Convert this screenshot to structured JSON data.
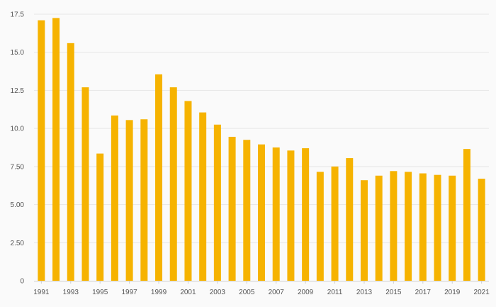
{
  "chart_data": {
    "type": "bar",
    "title": "",
    "xlabel": "",
    "ylabel": "",
    "categories": [
      "1991",
      "1992",
      "1993",
      "1994",
      "1995",
      "1996",
      "1997",
      "1998",
      "1999",
      "2000",
      "2001",
      "2002",
      "2003",
      "2004",
      "2005",
      "2006",
      "2007",
      "2008",
      "2009",
      "2010",
      "2011",
      "2012",
      "2013",
      "2014",
      "2015",
      "2016",
      "2017",
      "2018",
      "2019",
      "2020",
      "2021"
    ],
    "values": [
      17.1,
      17.25,
      15.6,
      12.7,
      8.35,
      10.85,
      10.55,
      10.6,
      13.55,
      12.7,
      11.8,
      11.05,
      10.25,
      9.45,
      9.25,
      8.95,
      8.75,
      8.55,
      8.7,
      7.15,
      7.5,
      8.05,
      6.6,
      6.9,
      7.2,
      7.15,
      7.05,
      6.95,
      6.9,
      8.65,
      6.7
    ],
    "x_tick_labels": [
      "1991",
      "1993",
      "1995",
      "1997",
      "1999",
      "2001",
      "2003",
      "2005",
      "2007",
      "2009",
      "2011",
      "2013",
      "2015",
      "2017",
      "2019",
      "2021"
    ],
    "y_tick_labels": [
      "0",
      "2.50",
      "5.00",
      "7.50",
      "10.0",
      "12.5",
      "15.0",
      "17.5"
    ],
    "y_tick_values": [
      0,
      2.5,
      5,
      7.5,
      10,
      12.5,
      15,
      17.5
    ],
    "ylim": [
      0,
      17.5
    ],
    "grid": true,
    "legend": "none",
    "colors": {
      "bar": "#f6b300",
      "grid": "#e6e6e6",
      "axis": "#cfcfcf",
      "text": "#555555",
      "background": "#fafafa"
    }
  }
}
